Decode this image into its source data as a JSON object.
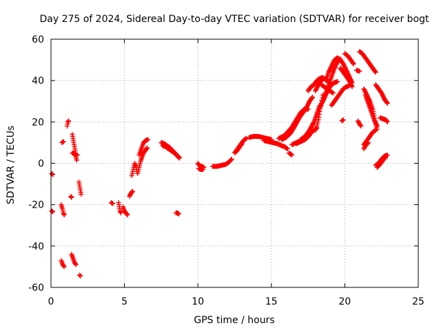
{
  "chart_data": {
    "type": "scatter",
    "title": "Day 275 of 2024, Sidereal Day-to-day VTEC variation (SDTVAR) for receiver bogt",
    "xlabel": "GPS time / hours",
    "ylabel": "SDTVAR / TECUs",
    "xlim": [
      0,
      25
    ],
    "ylim": [
      -60,
      60
    ],
    "xticks": [
      0,
      5,
      10,
      15,
      20,
      25
    ],
    "yticks": [
      -60,
      -40,
      -20,
      0,
      20,
      40,
      60
    ],
    "grid": true,
    "marker": "+",
    "series_color": "#ff0000",
    "segments": [
      [
        [
          0.05,
          -5
        ],
        [
          0.12,
          -5.5
        ]
      ],
      [
        [
          0.05,
          -23
        ],
        [
          0.12,
          -23.5
        ]
      ],
      [
        [
          0.7,
          -20
        ],
        [
          0.78,
          -22
        ],
        [
          0.85,
          -24
        ],
        [
          0.9,
          -25
        ]
      ],
      [
        [
          0.75,
          10
        ],
        [
          0.85,
          10.5
        ]
      ],
      [
        [
          0.7,
          -47
        ],
        [
          0.8,
          -49
        ],
        [
          0.9,
          -50
        ]
      ],
      [
        [
          1.1,
          18
        ],
        [
          1.15,
          20
        ],
        [
          1.2,
          20.5
        ]
      ],
      [
        [
          1.35,
          -16
        ],
        [
          1.4,
          -16.5
        ]
      ],
      [
        [
          1.4,
          -44
        ],
        [
          1.5,
          -46
        ],
        [
          1.6,
          -48
        ],
        [
          1.7,
          -49
        ]
      ],
      [
        [
          1.45,
          14
        ],
        [
          1.5,
          12
        ],
        [
          1.55,
          10
        ],
        [
          1.6,
          8
        ],
        [
          1.65,
          6
        ],
        [
          1.7,
          3
        ],
        [
          1.75,
          1.5
        ]
      ],
      [
        [
          1.45,
          5
        ],
        [
          1.6,
          4.5
        ],
        [
          1.8,
          4
        ]
      ],
      [
        [
          1.9,
          -9
        ],
        [
          1.95,
          -11
        ],
        [
          2.0,
          -13
        ],
        [
          2.05,
          -15
        ]
      ],
      [
        [
          1.95,
          -54
        ],
        [
          2.0,
          -54.5
        ]
      ],
      [
        [
          4.1,
          -19
        ],
        [
          4.2,
          -19.5
        ]
      ],
      [
        [
          4.6,
          -19
        ],
        [
          4.65,
          -21
        ],
        [
          4.7,
          -23
        ],
        [
          4.75,
          -24
        ]
      ],
      [
        [
          4.9,
          -21
        ],
        [
          5.0,
          -23
        ],
        [
          5.1,
          -24
        ],
        [
          5.2,
          -25
        ]
      ],
      [
        [
          5.35,
          -16
        ],
        [
          5.4,
          -15
        ],
        [
          5.5,
          -14
        ],
        [
          5.55,
          -13.5
        ]
      ],
      [
        [
          5.5,
          -6
        ],
        [
          5.6,
          -3
        ],
        [
          5.7,
          0
        ],
        [
          5.8,
          -2
        ],
        [
          5.85,
          -4
        ]
      ],
      [
        [
          5.9,
          -5
        ],
        [
          6.0,
          -2
        ],
        [
          6.1,
          1
        ],
        [
          6.2,
          3
        ],
        [
          6.3,
          5
        ],
        [
          6.4,
          6
        ],
        [
          6.55,
          7.5
        ]
      ],
      [
        [
          6.0,
          4
        ],
        [
          6.1,
          6
        ],
        [
          6.2,
          8
        ],
        [
          6.3,
          10
        ],
        [
          6.45,
          11
        ],
        [
          6.6,
          11.5
        ]
      ],
      [
        [
          7.5,
          10
        ],
        [
          7.7,
          9.5
        ],
        [
          7.9,
          8.5
        ],
        [
          8.1,
          7.5
        ],
        [
          8.3,
          6
        ],
        [
          8.5,
          4.5
        ],
        [
          8.7,
          3
        ]
      ],
      [
        [
          7.6,
          8.5
        ],
        [
          7.8,
          8
        ],
        [
          8.0,
          7
        ],
        [
          8.2,
          6
        ],
        [
          8.4,
          5
        ],
        [
          8.6,
          3.5
        ],
        [
          8.75,
          2.5
        ]
      ],
      [
        [
          8.5,
          -24
        ],
        [
          8.6,
          -24
        ],
        [
          8.7,
          -24.5
        ]
      ],
      [
        [
          10.0,
          0
        ],
        [
          10.1,
          -1
        ],
        [
          10.2,
          -1.5
        ],
        [
          10.3,
          -1.5
        ],
        [
          10.4,
          -2
        ]
      ],
      [
        [
          10.05,
          -2.5
        ],
        [
          10.2,
          -3
        ],
        [
          10.35,
          -3
        ]
      ],
      [
        [
          11.0,
          -1.5
        ],
        [
          11.3,
          -1.5
        ],
        [
          11.6,
          -1
        ],
        [
          11.9,
          -0.5
        ],
        [
          12.1,
          0.5
        ],
        [
          12.3,
          2
        ]
      ],
      [
        [
          12.5,
          5
        ],
        [
          12.7,
          7
        ],
        [
          12.9,
          9
        ],
        [
          13.1,
          11
        ],
        [
          13.3,
          12
        ]
      ],
      [
        [
          12.6,
          5.5
        ],
        [
          12.8,
          7.5
        ],
        [
          13.0,
          9.5
        ]
      ],
      [
        [
          13.5,
          12.5
        ],
        [
          13.8,
          13
        ],
        [
          14.1,
          13
        ],
        [
          14.4,
          12.5
        ],
        [
          14.7,
          12
        ],
        [
          15.0,
          11.5
        ]
      ],
      [
        [
          14.5,
          11
        ],
        [
          14.8,
          10.5
        ],
        [
          15.1,
          10
        ],
        [
          15.4,
          9.5
        ],
        [
          15.7,
          8.5
        ],
        [
          15.9,
          8
        ],
        [
          16.1,
          7
        ]
      ],
      [
        [
          15.5,
          12
        ],
        [
          15.8,
          13
        ],
        [
          16.1,
          15
        ],
        [
          16.4,
          17.5
        ],
        [
          16.7,
          21
        ],
        [
          17.0,
          24.5
        ],
        [
          17.3,
          26.5
        ],
        [
          17.5,
          26
        ]
      ],
      [
        [
          15.7,
          11.5
        ],
        [
          16.0,
          12.5
        ],
        [
          16.3,
          14.5
        ],
        [
          16.6,
          18
        ],
        [
          16.9,
          22
        ],
        [
          17.2,
          25
        ],
        [
          17.4,
          26.5
        ]
      ],
      [
        [
          16.2,
          5
        ],
        [
          16.3,
          4.5
        ],
        [
          16.4,
          4
        ]
      ],
      [
        [
          16.4,
          9
        ],
        [
          16.7,
          10
        ],
        [
          17.0,
          11
        ],
        [
          17.3,
          12
        ],
        [
          17.6,
          14
        ],
        [
          17.9,
          16
        ],
        [
          18.1,
          17
        ]
      ],
      [
        [
          16.7,
          9.5
        ],
        [
          17.0,
          10.5
        ],
        [
          17.3,
          11.5
        ],
        [
          17.6,
          13.5
        ]
      ],
      [
        [
          17.0,
          11.5
        ],
        [
          17.3,
          13
        ],
        [
          17.6,
          16
        ],
        [
          17.9,
          20
        ],
        [
          18.1,
          24
        ],
        [
          18.3,
          28
        ]
      ],
      [
        [
          17.5,
          35
        ],
        [
          17.7,
          37
        ],
        [
          17.9,
          38
        ],
        [
          18.1,
          40
        ],
        [
          18.3,
          41
        ],
        [
          18.5,
          41.5
        ]
      ],
      [
        [
          17.4,
          27
        ],
        [
          17.6,
          30
        ],
        [
          17.8,
          32
        ]
      ],
      [
        [
          18.0,
          16
        ],
        [
          18.1,
          18
        ],
        [
          18.2,
          21
        ],
        [
          18.3,
          25
        ],
        [
          18.4,
          29
        ],
        [
          18.5,
          33
        ]
      ],
      [
        [
          18.0,
          35
        ],
        [
          18.2,
          38
        ],
        [
          18.4,
          40
        ],
        [
          18.6,
          41
        ],
        [
          18.8,
          40
        ],
        [
          19.0,
          39
        ]
      ],
      [
        [
          18.3,
          27
        ],
        [
          18.5,
          30
        ],
        [
          18.7,
          33
        ],
        [
          18.9,
          36
        ],
        [
          19.1,
          38
        ],
        [
          19.3,
          39
        ],
        [
          19.5,
          39.5
        ]
      ],
      [
        [
          18.4,
          38
        ],
        [
          18.6,
          37
        ],
        [
          18.8,
          36
        ],
        [
          19.0,
          35
        ],
        [
          19.2,
          34
        ]
      ],
      [
        [
          18.5,
          30
        ],
        [
          18.7,
          34
        ],
        [
          18.9,
          38
        ],
        [
          19.1,
          42
        ],
        [
          19.3,
          46
        ],
        [
          19.5,
          49
        ],
        [
          19.7,
          50.5
        ]
      ],
      [
        [
          18.7,
          40
        ],
        [
          18.9,
          44
        ],
        [
          19.1,
          47
        ],
        [
          19.3,
          50
        ],
        [
          19.5,
          51
        ],
        [
          19.7,
          50
        ],
        [
          19.9,
          48
        ],
        [
          20.1,
          45
        ],
        [
          20.3,
          42
        ],
        [
          20.5,
          39
        ]
      ],
      [
        [
          19.1,
          28
        ],
        [
          19.3,
          30
        ],
        [
          19.5,
          32
        ],
        [
          19.7,
          34
        ],
        [
          19.9,
          36
        ],
        [
          20.1,
          37
        ],
        [
          20.3,
          37.5
        ]
      ],
      [
        [
          19.7,
          46
        ],
        [
          19.9,
          44
        ],
        [
          20.1,
          42
        ],
        [
          20.3,
          40
        ],
        [
          20.5,
          37
        ]
      ],
      [
        [
          19.8,
          20.5
        ],
        [
          19.9,
          21
        ]
      ],
      [
        [
          20.0,
          53
        ],
        [
          20.2,
          52
        ],
        [
          20.4,
          50
        ],
        [
          20.6,
          48
        ]
      ],
      [
        [
          20.8,
          45
        ],
        [
          21.0,
          44.5
        ]
      ],
      [
        [
          20.9,
          20.5
        ],
        [
          21.0,
          19
        ],
        [
          21.1,
          18
        ]
      ],
      [
        [
          21.0,
          54
        ],
        [
          21.2,
          53
        ],
        [
          21.4,
          51
        ],
        [
          21.6,
          49
        ],
        [
          21.8,
          47
        ],
        [
          22.0,
          45
        ],
        [
          22.1,
          44
        ]
      ],
      [
        [
          21.3,
          36
        ],
        [
          21.5,
          33
        ],
        [
          21.7,
          30
        ],
        [
          21.9,
          26
        ],
        [
          22.0,
          23
        ],
        [
          22.1,
          19
        ],
        [
          22.2,
          16.5
        ]
      ],
      [
        [
          21.4,
          33
        ],
        [
          21.6,
          29
        ],
        [
          21.8,
          25
        ],
        [
          22.0,
          21
        ],
        [
          22.2,
          18
        ]
      ],
      [
        [
          21.3,
          9
        ],
        [
          21.5,
          11
        ],
        [
          21.7,
          13
        ],
        [
          21.9,
          15
        ],
        [
          22.1,
          16
        ]
      ],
      [
        [
          21.3,
          7
        ],
        [
          21.4,
          8.5
        ],
        [
          21.6,
          10
        ]
      ],
      [
        [
          22.1,
          38
        ],
        [
          22.3,
          36
        ],
        [
          22.5,
          34
        ],
        [
          22.7,
          31
        ],
        [
          22.9,
          29
        ]
      ],
      [
        [
          22.4,
          22
        ],
        [
          22.6,
          21.5
        ],
        [
          22.8,
          21
        ],
        [
          22.9,
          20
        ]
      ],
      [
        [
          22.1,
          -1
        ],
        [
          22.3,
          0
        ],
        [
          22.5,
          2
        ],
        [
          22.7,
          3.5
        ],
        [
          22.9,
          4
        ]
      ],
      [
        [
          22.2,
          -2
        ],
        [
          22.4,
          -0.5
        ],
        [
          22.6,
          1.5
        ],
        [
          22.8,
          3
        ]
      ]
    ]
  }
}
